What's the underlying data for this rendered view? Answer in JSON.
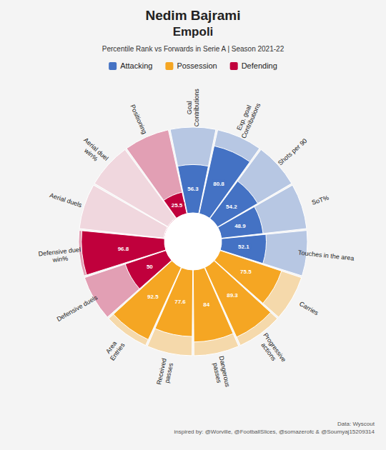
{
  "chart_data": {
    "type": "polar_bar",
    "title": [
      "Nedim Bajrami",
      "Empoli"
    ],
    "subtitle": "Percentile Rank vs Forwards in Serie A | Season 2021-22",
    "categories": [
      "Goal\nContributions",
      "Exp. goal\nContributions",
      "Shots per 90",
      "SoT%",
      "Touches in the area",
      "Carries",
      "Progressive\nactions",
      "Dangerous\npasses",
      "Received\npasses",
      "Area\nEntries",
      "Defensive duels",
      "Defensive duel\nwin%",
      "Aerial duels",
      "Aerial duel\nwin%",
      "Positioning"
    ],
    "values": [
      56.3,
      80.8,
      54.2,
      48.9,
      52.1,
      75.5,
      89.3,
      84,
      77.6,
      92.5,
      50,
      96.8,
      1,
      1,
      25.5
    ],
    "value_labels": [
      "56.3",
      "80.8",
      "54.2",
      "48.9",
      "52.1",
      "75.5",
      "89.3",
      "84",
      "77.6",
      "92.5",
      "50",
      "96.8",
      null,
      null,
      "25.5"
    ],
    "data_labels": true,
    "colors": [
      "#4472c4",
      "#4472c4",
      "#4472c4",
      "#4472c4",
      "#4472c4",
      "#f5a623",
      "#f5a623",
      "#f5a623",
      "#f5a623",
      "#f5a623",
      "#c0003c",
      "#c0003c",
      "#e8a0b4",
      "#e8a0b4",
      "#c0003c"
    ],
    "groups": [
      {
        "name": "Attacking",
        "color": "#4472c4"
      },
      {
        "name": "Possession",
        "color": "#f5a623"
      },
      {
        "name": "Defending",
        "color": "#c0003c"
      }
    ],
    "ylim": [
      0,
      100
    ],
    "tick_labels": false,
    "grid": false,
    "annotations": [
      "Data: Wyscout\ninspired by: @Worville, @FootballSlices, @somazerofc & @Soumyaj15209314"
    ]
  }
}
